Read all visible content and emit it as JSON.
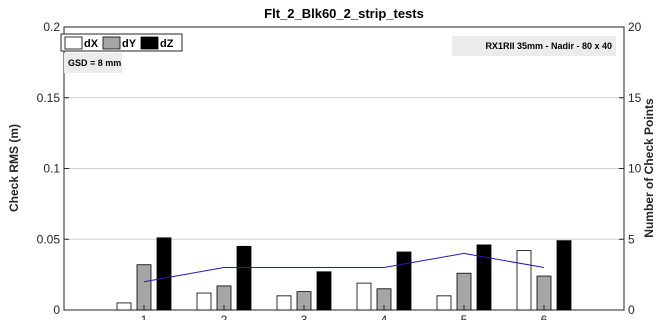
{
  "chart_data": {
    "type": "bar",
    "title": "Flt_2_Blk60_2_strip_tests",
    "ylabel": "Check RMS (m)",
    "y2label": "Number of Check Points",
    "ylim": [
      0,
      0.2
    ],
    "y2lim": [
      0,
      20
    ],
    "yticks": [
      "0",
      "0.05",
      "0.1",
      "0.15",
      "0.2"
    ],
    "y2ticks": [
      "0",
      "5",
      "10",
      "15",
      "20"
    ],
    "categories": [
      "1",
      "2",
      "3",
      "4",
      "5",
      "6"
    ],
    "series": [
      {
        "name": "dX",
        "color": "#ffffff",
        "values": [
          0.005,
          0.012,
          0.01,
          0.019,
          0.01,
          0.042
        ]
      },
      {
        "name": "dY",
        "color": "#a6a6a6",
        "values": [
          0.032,
          0.017,
          0.013,
          0.015,
          0.026,
          0.024
        ]
      },
      {
        "name": "dZ",
        "color": "#000000",
        "values": [
          0.051,
          0.045,
          0.027,
          0.041,
          0.046,
          0.049
        ]
      }
    ],
    "line_series": {
      "axis": "right",
      "color": "#1f1fb4",
      "values": [
        2,
        3,
        3,
        3,
        4,
        3
      ]
    },
    "legend_placement": "top-left",
    "grid": "horizontal",
    "annotations": {
      "gsd": "GSD =  8 mm",
      "camera": "RX1RII 35mm - Nadir - 80 x 40"
    }
  }
}
